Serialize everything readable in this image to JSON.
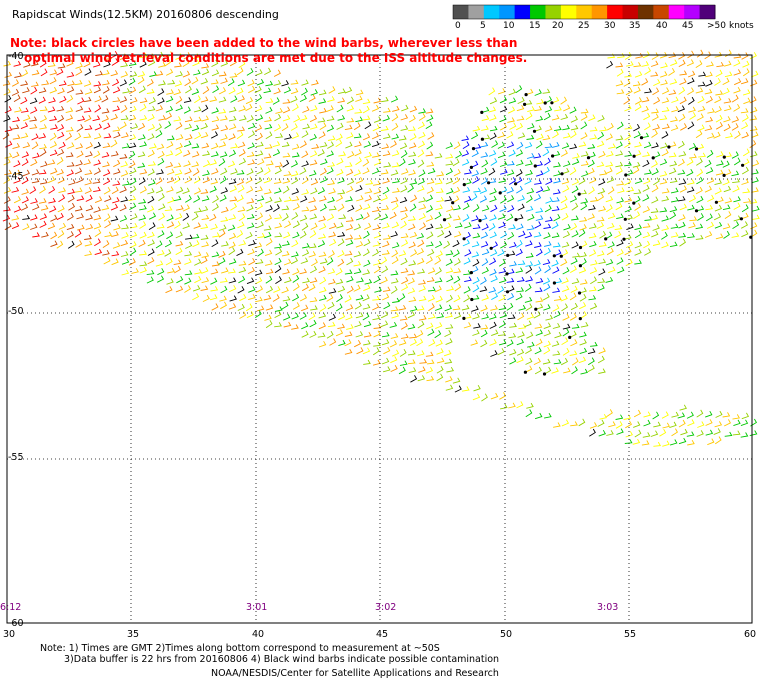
{
  "title": "Rapidscat Winds(12.5KM) 20160806 descending",
  "note_line1": "Note: black circles have been added to the wind barbs, wherever less than",
  "note_line2": "optimal wind retrieval conditions are met due to the ISS altitude changes.",
  "legend": {
    "unit": "knots",
    "colors": [
      "#505050",
      "#a0a0a0",
      "#00c8ff",
      "#0096ff",
      "#0000ff",
      "#00c800",
      "#96d200",
      "#ffff00",
      "#ffc800",
      "#ff9600",
      "#ff0000",
      "#c80000",
      "#6e3200",
      "#c84600",
      "#ff00ff",
      "#b400ff",
      "#50007a"
    ],
    "labels": [
      "0",
      "5",
      "10",
      "15",
      "20",
      "25",
      "30",
      "35",
      "40",
      "45",
      ">50"
    ]
  },
  "latitude_labels": [
    "-40",
    "-45",
    "-50",
    "-55",
    "-60"
  ],
  "longitude_labels": [
    "30",
    "35",
    "40",
    "45",
    "50",
    "55",
    "60"
  ],
  "time_labels": [
    "6:12",
    "3:01",
    "3:02",
    "3:03"
  ],
  "footnotes": {
    "line1": "Note: 1) Times are GMT 2)Times along bottom correspond to measurement at ~50S",
    "line2": "3)Data buffer is 22 hrs from 20160806 4) Black wind barbs indicate possible contamination",
    "credit": "NOAA/NESDIS/Center for Satellite Applications and Research"
  }
}
